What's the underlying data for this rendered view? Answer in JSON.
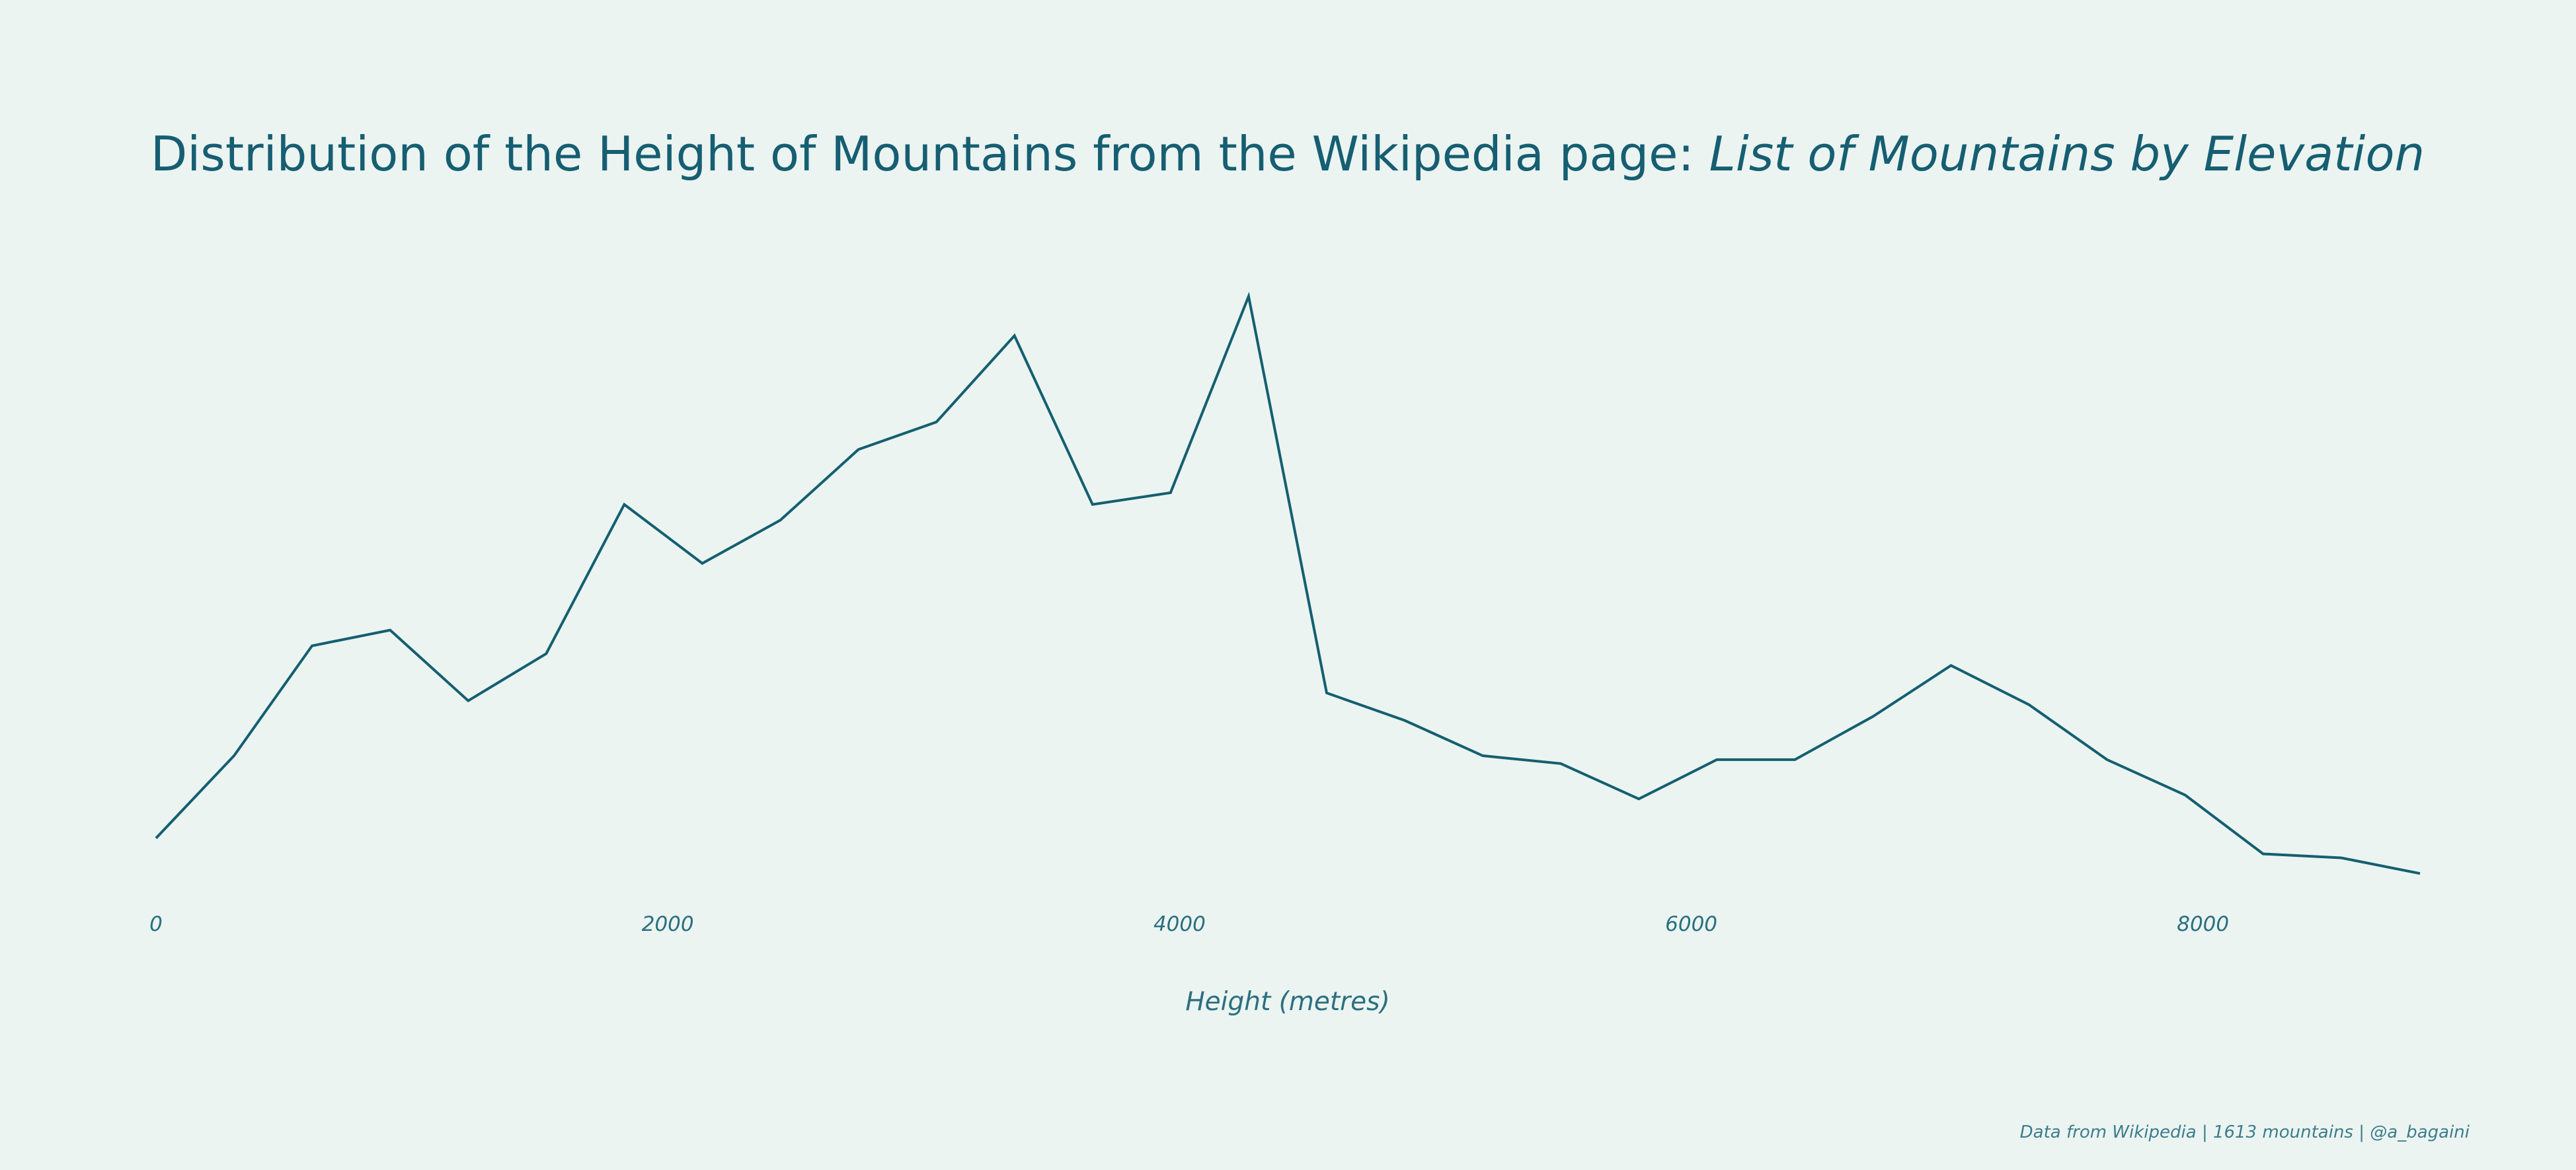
{
  "chart_data": {
    "type": "line",
    "title": "Distribution of the Height of Mountains from the Wikipedia page:",
    "title_italic": "List of Mountains by Elevation",
    "xlabel": "Height (metres)",
    "ylabel": "",
    "xlim": [
      0,
      8848
    ],
    "ylim": [
      0,
      140
    ],
    "x_ticks": [
      0,
      2000,
      4000,
      6000,
      8000
    ],
    "x_tick_labels": [
      "0",
      "2000",
      "4000",
      "6000",
      "8000"
    ],
    "grid": false,
    "series": [
      {
        "x": [
          0,
          305,
          610,
          915,
          1220,
          1525,
          1830,
          2135,
          2440,
          2745,
          3050,
          3355,
          3660,
          3965,
          4270,
          4575,
          4880,
          5185,
          5490,
          5795,
          6100,
          6405,
          6710,
          7015,
          7320,
          7625,
          7930,
          8235,
          8540,
          8848
        ],
        "y": [
          13,
          34,
          62,
          66,
          48,
          60,
          98,
          83,
          94,
          112,
          119,
          141,
          98,
          101,
          151,
          50,
          43,
          34,
          32,
          23,
          33,
          33,
          44,
          57,
          47,
          33,
          24,
          9,
          8,
          4
        ]
      }
    ],
    "color": "#145f70",
    "background": "#ebf4f1"
  },
  "footer": "Data from Wikipedia | 1613 mountains | @a_bagaini"
}
